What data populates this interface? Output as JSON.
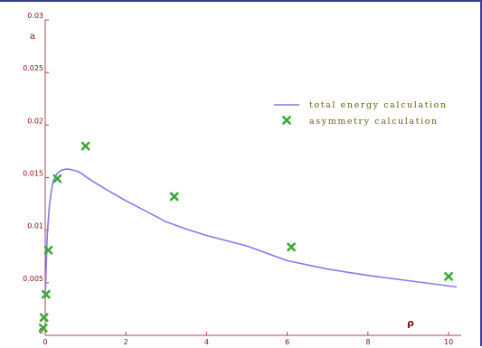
{
  "chart_data": {
    "type": "line",
    "xlabel": "ρ",
    "ylabel": "a",
    "xlim": [
      0,
      10.2
    ],
    "ylim": [
      0,
      0.03
    ],
    "x_ticks": [
      {
        "value": 0,
        "label": "0"
      },
      {
        "value": 2,
        "label": "2"
      },
      {
        "value": 4,
        "label": "4"
      },
      {
        "value": 6,
        "label": "6"
      },
      {
        "value": 8,
        "label": "8"
      },
      {
        "value": 10,
        "label": "10"
      }
    ],
    "y_ticks": [
      {
        "value": 0,
        "label": "0"
      },
      {
        "value": 0.005,
        "label": "0.005"
      },
      {
        "value": 0.01,
        "label": "0.01"
      },
      {
        "value": 0.015,
        "label": "0.015"
      },
      {
        "value": 0.02,
        "label": "0.02"
      },
      {
        "value": 0.025,
        "label": "0.025"
      },
      {
        "value": 0.03,
        "label": "0.03"
      }
    ],
    "legend_position": "top-right",
    "grid": false,
    "series": [
      {
        "name": "total energy calculation",
        "type": "line",
        "color": "#8877ee",
        "x": [
          0,
          0.05,
          0.1,
          0.15,
          0.2,
          0.3,
          0.4,
          0.5,
          0.6,
          0.7,
          0.8,
          0.9,
          1.0,
          1.2,
          1.5,
          2.0,
          2.5,
          3.0,
          3.5,
          4.0,
          5.0,
          6.0,
          7.0,
          8.0,
          9.0,
          10.2
        ],
        "y": [
          0.0035,
          0.0095,
          0.0122,
          0.0137,
          0.0147,
          0.0154,
          0.0157,
          0.0158,
          0.0158,
          0.0157,
          0.0156,
          0.0154,
          0.0151,
          0.0146,
          0.0139,
          0.0128,
          0.0118,
          0.0108,
          0.0101,
          0.0095,
          0.0085,
          0.0071,
          0.0063,
          0.0057,
          0.0052,
          0.0046
        ]
      },
      {
        "name": "asymmetry calculation",
        "type": "scatter",
        "color": "#3aaa35",
        "x": [
          -0.05,
          -0.03,
          0.02,
          0.08,
          0.3,
          1.0,
          3.2,
          6.1,
          10.0
        ],
        "y": [
          0.0007,
          0.0017,
          0.0039,
          0.0081,
          0.0149,
          0.018,
          0.0132,
          0.0084,
          0.0056
        ]
      }
    ]
  }
}
